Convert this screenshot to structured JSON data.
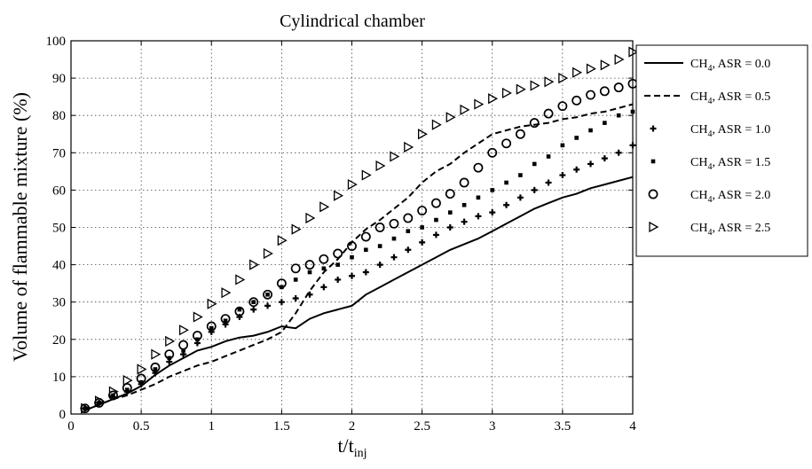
{
  "chart_data": {
    "type": "line",
    "title": "Cylindrical chamber",
    "xlabel": "t/t",
    "xlabel_sub": "inj",
    "ylabel": "Volume of flammable mixture (%)",
    "xlim": [
      0,
      4
    ],
    "ylim": [
      0,
      100
    ],
    "xticks": [
      "0",
      "0.5",
      "1",
      "1.5",
      "2",
      "2.5",
      "3",
      "3.5",
      "4"
    ],
    "yticks": [
      "0",
      "10",
      "20",
      "30",
      "40",
      "50",
      "60",
      "70",
      "80",
      "90",
      "100"
    ],
    "grid": true,
    "legend_position": "outside-right",
    "x": [
      0.1,
      0.2,
      0.3,
      0.4,
      0.5,
      0.6,
      0.7,
      0.8,
      0.9,
      1.0,
      1.1,
      1.2,
      1.3,
      1.4,
      1.5,
      1.6,
      1.7,
      1.8,
      1.9,
      2.0,
      2.1,
      2.2,
      2.3,
      2.4,
      2.5,
      2.6,
      2.7,
      2.8,
      2.9,
      3.0,
      3.1,
      3.2,
      3.3,
      3.4,
      3.5,
      3.6,
      3.7,
      3.8,
      3.9,
      4.0
    ],
    "series": [
      {
        "name": "CH4, ASR = 0.0",
        "legend_main": "CH",
        "legend_sub": "4",
        "legend_rest": ", ASR = 0.0",
        "style": "solid",
        "values": [
          1,
          2.5,
          4,
          5.5,
          7.5,
          10.5,
          13,
          15,
          17,
          18,
          19.5,
          20.5,
          21,
          22,
          23.5,
          23,
          25.5,
          27,
          28,
          29,
          32,
          34,
          36,
          38,
          40,
          42,
          44,
          45.5,
          47,
          49,
          51,
          53,
          55,
          56.5,
          58,
          59,
          60.5,
          61.5,
          62.5,
          63.5
        ]
      },
      {
        "name": "CH4, ASR = 0.5",
        "legend_main": "CH",
        "legend_sub": "4",
        "legend_rest": ", ASR = 0.5",
        "style": "dashed",
        "values": [
          1,
          2.5,
          4,
          5,
          6.5,
          8,
          10,
          11.5,
          13,
          14,
          15.5,
          17,
          18.5,
          20,
          22,
          27,
          33,
          38,
          41.5,
          46,
          49.5,
          52,
          55,
          58,
          62,
          65,
          67,
          70,
          72.5,
          75,
          76,
          77,
          77.5,
          78,
          79,
          79.5,
          80.5,
          81,
          82,
          83
        ]
      },
      {
        "name": "CH4, ASR = 1.0",
        "legend_main": "CH",
        "legend_sub": "4",
        "legend_rest": ", ASR = 1.0",
        "style": "plus",
        "values": [
          1.5,
          3,
          4.5,
          6,
          8,
          11,
          14,
          16,
          19,
          22,
          24,
          26,
          28,
          29,
          30,
          31,
          32,
          34,
          36,
          37,
          38,
          40,
          42,
          44,
          46,
          48,
          50,
          51.5,
          53,
          54,
          56,
          58,
          60,
          62,
          64,
          65.5,
          67,
          68.5,
          70,
          72
        ]
      },
      {
        "name": "CH4, ASR = 1.5",
        "legend_main": "CH",
        "legend_sub": "4",
        "legend_rest": ", ASR = 1.5",
        "style": "square",
        "values": [
          1.5,
          3,
          5,
          6.5,
          8.5,
          12,
          15,
          17,
          20,
          23,
          25,
          28,
          30,
          32,
          34,
          36,
          38,
          39,
          40,
          42,
          44,
          45,
          47,
          49,
          50,
          52,
          54,
          56,
          58,
          60,
          62,
          64,
          67,
          69,
          72,
          74,
          76,
          78,
          80,
          81
        ]
      },
      {
        "name": "CH4, ASR = 2.0",
        "legend_main": "CH",
        "legend_sub": "4",
        "legend_rest": ", ASR = 2.0",
        "style": "circle",
        "values": [
          1.5,
          3,
          5,
          7,
          9.5,
          12.5,
          16,
          18.5,
          21,
          23.5,
          25.5,
          27.5,
          30,
          32,
          35,
          39,
          40,
          41.5,
          43,
          45,
          47.5,
          50,
          51,
          52.5,
          54.5,
          56.5,
          59,
          62,
          66,
          70,
          72.5,
          75,
          78,
          80.5,
          82.5,
          84,
          85.5,
          86.5,
          87.5,
          88.5
        ]
      },
      {
        "name": "CH4, ASR = 2.5",
        "legend_main": "CH",
        "legend_sub": "4",
        "legend_rest": ", ASR = 2.5",
        "style": "triangle",
        "values": [
          1.5,
          3.5,
          6,
          9,
          12,
          16,
          19.5,
          22.5,
          26,
          29.5,
          32.5,
          36,
          40,
          43,
          46.5,
          49.5,
          52.5,
          55.5,
          58.5,
          61.5,
          64,
          66.5,
          69,
          71.5,
          75,
          77.5,
          79.5,
          81.5,
          83,
          84.5,
          86,
          87,
          88,
          89,
          90,
          91.5,
          92.5,
          93.5,
          95,
          97
        ]
      }
    ]
  }
}
